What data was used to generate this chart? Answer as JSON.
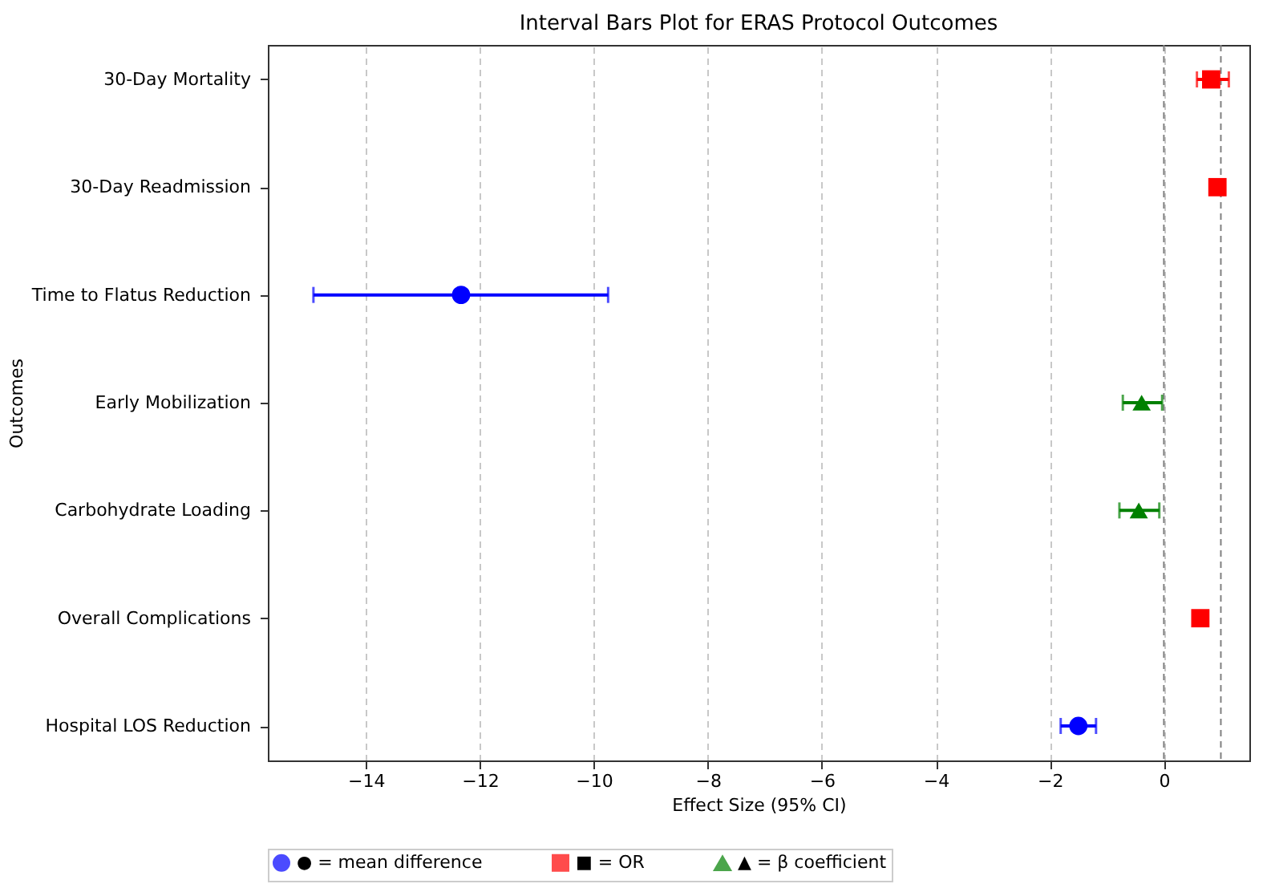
{
  "chart_data": {
    "type": "scatter",
    "orientation": "horizontal",
    "title": "Interval Bars Plot for ERAS Protocol Outcomes",
    "xlabel": "Effect Size (95% CI)",
    "ylabel": "Outcomes",
    "categories": [
      "30-Day Mortality",
      "30-Day Readmission",
      "Time to Flatus Reduction",
      "Early Mobilization",
      "Carbohydrate Loading",
      "Overall Complications",
      "Hospital LOS Reduction"
    ],
    "series": [
      {
        "name": "● = mean difference",
        "color": "#0000ff",
        "marker": "circle",
        "values": [
          null,
          null,
          -12.33,
          null,
          null,
          null,
          -1.5
        ],
        "errors": [
          null,
          null,
          [
            -14.92,
            -9.75
          ],
          null,
          null,
          null,
          [
            -1.81,
            -1.19
          ]
        ]
      },
      {
        "name": "■ = OR",
        "color": "#ff0000",
        "marker": "square",
        "values": [
          0.83,
          0.94,
          null,
          null,
          null,
          0.64,
          null
        ],
        "errors": [
          [
            0.58,
            1.14
          ],
          null,
          null,
          null,
          null,
          null,
          null
        ]
      },
      {
        "name": "▲ = β coefficient",
        "color": "#008000",
        "marker": "triangle",
        "values": [
          null,
          null,
          null,
          -0.39,
          -0.44,
          null,
          null
        ],
        "errors": [
          null,
          null,
          null,
          [
            -0.72,
            -0.03
          ],
          [
            -0.78,
            -0.08
          ],
          null,
          null
        ]
      }
    ],
    "xlim": [
      -15.72,
      1.5
    ],
    "xticks": [
      -14,
      -12,
      -10,
      -8,
      -6,
      -4,
      -2,
      0
    ],
    "ref_lines": [
      {
        "axis": "x",
        "value": 0,
        "color": "#808080",
        "line_style": "dashed"
      },
      {
        "axis": "x",
        "value": 1,
        "color": "#808080",
        "line_style": "dashed"
      }
    ],
    "grid": "x",
    "legend": "bottom"
  }
}
